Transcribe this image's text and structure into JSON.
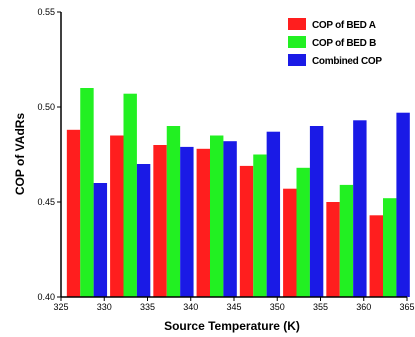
{
  "chart_data": {
    "type": "bar",
    "xlabel": "Source Temperature (K)",
    "ylabel": "COP of VAdRs",
    "xlim": [
      325,
      365
    ],
    "ylim": [
      0.4,
      0.55
    ],
    "x_ticks": [
      325,
      330,
      335,
      340,
      345,
      350,
      355,
      360,
      365
    ],
    "y_ticks": [
      {
        "value": 0.4,
        "label": "0.40"
      },
      {
        "value": 0.45,
        "label": "0.45"
      },
      {
        "value": 0.5,
        "label": "0.50"
      },
      {
        "value": 0.55,
        "label": "0.55"
      }
    ],
    "legend_position": "top-right",
    "grid": false,
    "categories": [
      328,
      333,
      338,
      343,
      348,
      353,
      358,
      363
    ],
    "series": [
      {
        "name": "COP of BED A",
        "color": "#ff1e1e",
        "values": [
          0.488,
          0.485,
          0.48,
          0.478,
          0.469,
          0.457,
          0.45,
          0.443
        ]
      },
      {
        "name": "COP of BED B",
        "color": "#22f022",
        "values": [
          0.51,
          0.507,
          0.49,
          0.485,
          0.475,
          0.468,
          0.459,
          0.452
        ]
      },
      {
        "name": "Combined COP",
        "color": "#1a1ae6",
        "values": [
          0.46,
          0.47,
          0.479,
          0.482,
          0.487,
          0.49,
          0.493,
          0.497
        ]
      }
    ]
  }
}
